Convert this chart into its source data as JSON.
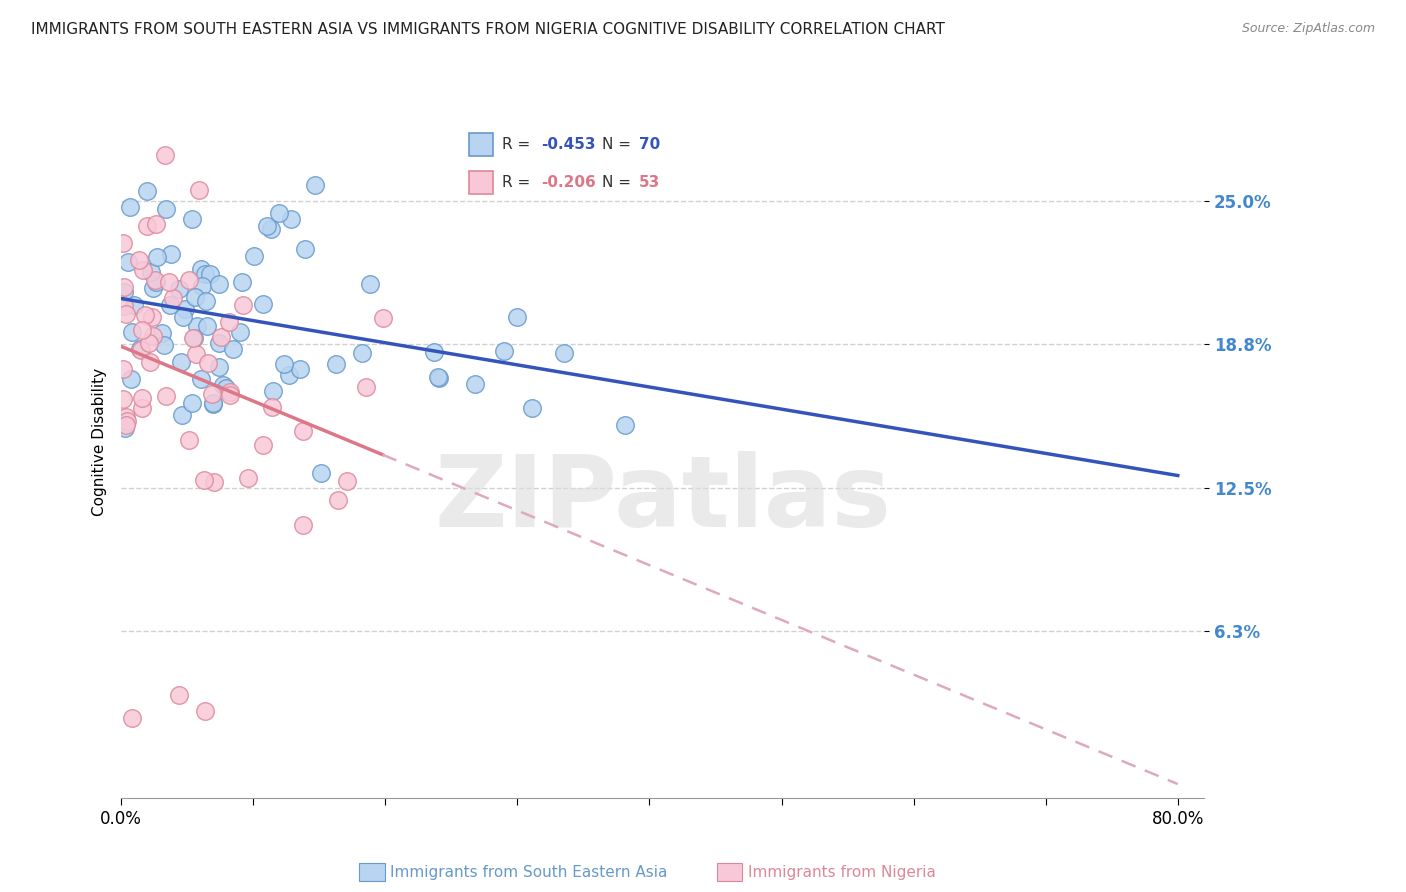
{
  "title": "IMMIGRANTS FROM SOUTH EASTERN ASIA VS IMMIGRANTS FROM NIGERIA COGNITIVE DISABILITY CORRELATION CHART",
  "source": "Source: ZipAtlas.com",
  "ylabel": "Cognitive Disability",
  "xlabel": "",
  "xlim": [
    0.0,
    0.82
  ],
  "ylim": [
    -0.01,
    0.3
  ],
  "yticks": [
    0.063,
    0.125,
    0.188,
    0.25
  ],
  "ytick_labels": [
    "6.3%",
    "12.5%",
    "18.8%",
    "25.0%"
  ],
  "xticks": [
    0.0,
    0.1,
    0.2,
    0.3,
    0.4,
    0.5,
    0.6,
    0.7,
    0.8
  ],
  "series1_label": "Immigrants from South Eastern Asia",
  "series1_color": "#b8d4f0",
  "series1_edge_color": "#6699cc",
  "series1_R": -0.453,
  "series1_N": 70,
  "series2_label": "Immigrants from Nigeria",
  "series2_color": "#f8c8d8",
  "series2_edge_color": "#dd8899",
  "series2_R": -0.206,
  "series2_N": 53,
  "line1_color": "#3355bb",
  "line2_color": "#dd7788",
  "line2_dashed_color": "#ddaabb",
  "background_color": "#ffffff",
  "watermark": "ZIPatlas",
  "title_fontsize": 11,
  "axis_label_fontsize": 11,
  "legend_fontsize": 11,
  "r_value_color_blue": "#3355bb",
  "r_value_color_pink": "#dd7788",
  "n_value_color_blue": "#3355bb",
  "n_value_color_pink": "#dd7788"
}
